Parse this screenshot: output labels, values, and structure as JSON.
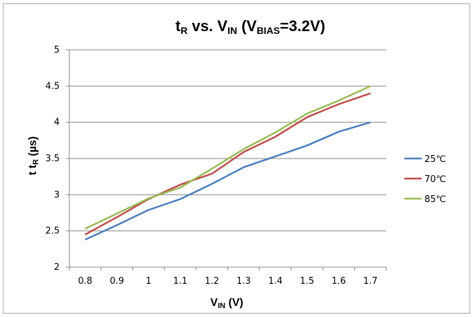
{
  "chart_data": {
    "type": "line",
    "title": {
      "main": "t",
      "main_sub": "R",
      "mid": " vs. V",
      "mid_sub": "IN",
      "open": " (V",
      "bias_sub": "BIAS",
      "rest": "=3.2V)"
    },
    "xlabel": {
      "main": "V",
      "sub": "IN",
      "rest": " (V)"
    },
    "ylabel": {
      "prefix": "t",
      "prefix_sub": "",
      "main": "t",
      "sub": "R",
      "rest": " (µs)"
    },
    "x": [
      0.8,
      0.9,
      1.0,
      1.1,
      1.2,
      1.3,
      1.4,
      1.5,
      1.6,
      1.7
    ],
    "x_tick_labels": [
      "0.8",
      "0.9",
      "1",
      "1.1",
      "1.2",
      "1.3",
      "1.4",
      "1.5",
      "1.6",
      "1.7"
    ],
    "y_tick_labels": [
      "2",
      "2.5",
      "3",
      "3.5",
      "4",
      "4.5",
      "5"
    ],
    "ylim": [
      2,
      5
    ],
    "grid": "horizontal",
    "legend_position": "right",
    "series": [
      {
        "name": "25℃",
        "color": "#4a7ebb",
        "values": [
          2.38,
          2.58,
          2.79,
          2.94,
          3.15,
          3.38,
          3.53,
          3.68,
          3.87,
          4.0
        ]
      },
      {
        "name": "70℃",
        "color": "#be4b48",
        "values": [
          2.45,
          2.69,
          2.94,
          3.14,
          3.29,
          3.59,
          3.8,
          4.07,
          4.25,
          4.4
        ]
      },
      {
        "name": "85℃",
        "color": "#98b954",
        "values": [
          2.53,
          2.74,
          2.95,
          3.1,
          3.36,
          3.63,
          3.86,
          4.12,
          4.3,
          4.5
        ]
      }
    ]
  }
}
